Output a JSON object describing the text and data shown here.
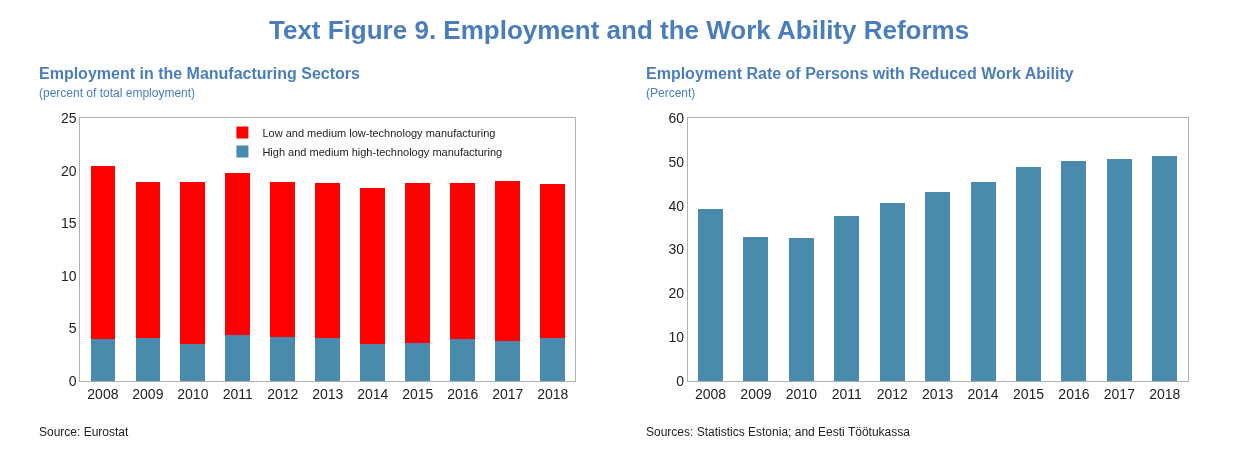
{
  "chart_data": [
    {
      "type": "other",
      "title": "Text Figure 9. Employment and the Work Ability Reforms"
    },
    {
      "type": "bar",
      "title": "Employment in the Manufacturing Sectors",
      "subtitle": "(percent of total employment)",
      "stacked": true,
      "categories": [
        "2008",
        "2009",
        "2010",
        "2011",
        "2012",
        "2013",
        "2014",
        "2015",
        "2016",
        "2017",
        "2018"
      ],
      "series": [
        {
          "name": "High and medium high-technology manufacturing",
          "color": "#4a8aad",
          "values": [
            4.0,
            4.1,
            3.5,
            4.4,
            4.2,
            4.1,
            3.5,
            3.6,
            4.0,
            3.8,
            4.1
          ]
        },
        {
          "name": "Low and medium low-technology manufacturing",
          "color": "#ff0000",
          "values": [
            16.4,
            14.8,
            15.4,
            15.4,
            14.7,
            14.7,
            14.8,
            15.2,
            14.8,
            15.2,
            14.6
          ]
        }
      ],
      "ylim": [
        0,
        25
      ],
      "yticks": [
        0,
        5,
        10,
        15,
        20,
        25
      ],
      "legend": "top",
      "annotations": [
        "Source: Eurostat"
      ]
    },
    {
      "type": "bar",
      "title": "Employment Rate of Persons with Reduced Work Ability",
      "subtitle": "(Percent)",
      "categories": [
        "2008",
        "2009",
        "2010",
        "2011",
        "2012",
        "2013",
        "2014",
        "2015",
        "2016",
        "2017",
        "2018"
      ],
      "series": [
        {
          "color": "#4a8aad",
          "values": [
            39.2,
            32.9,
            32.6,
            37.7,
            40.6,
            43.2,
            45.5,
            48.8,
            50.3,
            50.7,
            51.4
          ]
        }
      ],
      "ylim": [
        0,
        60
      ],
      "yticks": [
        0,
        10,
        20,
        30,
        40,
        50,
        60
      ],
      "annotations": [
        "Sources: Statistics Estonia; and Eesti Töötukassa"
      ]
    }
  ]
}
